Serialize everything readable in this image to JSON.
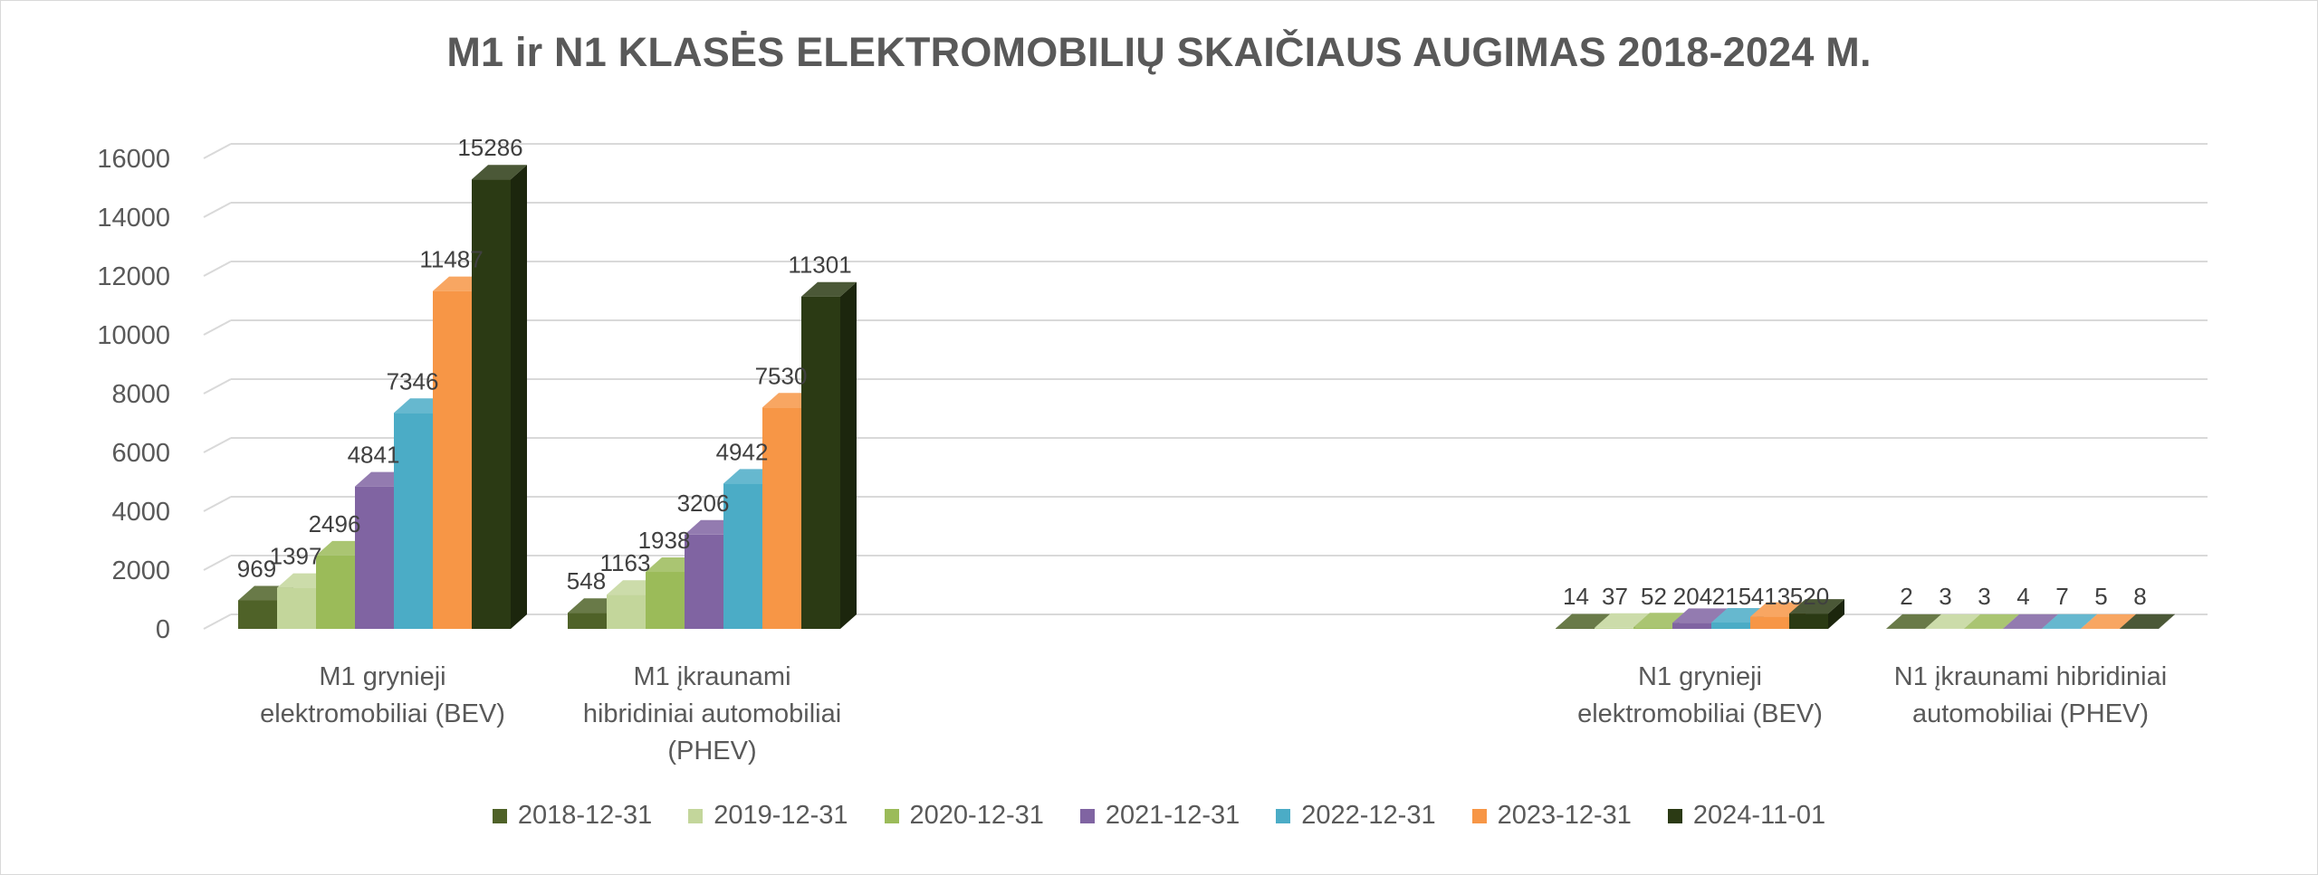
{
  "chart_data": {
    "type": "bar",
    "title": "M1 ir N1 KLASĖS ELEKTROMOBILIŲ SKAIČIAUS AUGIMAS 2018-2024 M.",
    "categories": [
      [
        "M1 grynieji",
        "elektromobiliai (BEV)"
      ],
      [
        "M1 įkraunami",
        "hibridiniai automobiliai",
        "(PHEV)"
      ],
      [
        "N1 grynieji",
        "elektromobiliai (BEV)"
      ],
      [
        "N1 įkraunami hibridiniai",
        "automobiliai (PHEV)"
      ]
    ],
    "series": [
      {
        "name": "2018-12-31",
        "color": "#4f6228",
        "values": [
          969,
          548,
          14,
          2
        ]
      },
      {
        "name": "2019-12-31",
        "color": "#c3d69b",
        "values": [
          1397,
          1163,
          37,
          3
        ]
      },
      {
        "name": "2020-12-31",
        "color": "#9bbb59",
        "values": [
          2496,
          1938,
          52,
          3
        ]
      },
      {
        "name": "2021-12-31",
        "color": "#8064a2",
        "values": [
          4841,
          3206,
          204,
          4
        ]
      },
      {
        "name": "2022-12-31",
        "color": "#4bacc6",
        "values": [
          7346,
          4942,
          215,
          7
        ]
      },
      {
        "name": "2023-12-31",
        "color": "#f79646",
        "values": [
          11487,
          7530,
          413,
          5
        ]
      },
      {
        "name": "2024-11-01",
        "color": "#2b3a14",
        "values": [
          15286,
          11301,
          520,
          8
        ]
      }
    ],
    "ylim": [
      0,
      16000
    ],
    "yticks": [
      0,
      2000,
      4000,
      6000,
      8000,
      10000,
      12000,
      14000,
      16000
    ],
    "grid": true,
    "legend_position": "bottom",
    "style": "3d-clustered-column"
  }
}
